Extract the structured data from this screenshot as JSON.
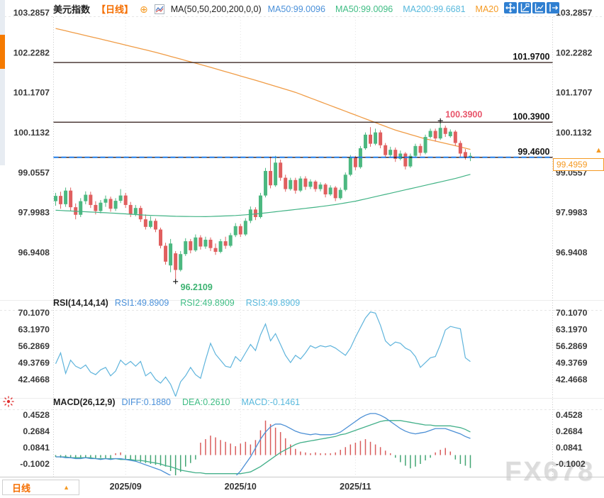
{
  "colors": {
    "up": "#4cb880",
    "down": "#e05f5f",
    "ma_line_orange": "#f09c46",
    "ma_line_green": "#41b385",
    "rsi_line": "#5fb4dc",
    "diff_line": "#4b8fd5",
    "dea_line": "#43b08a",
    "hist_up": "#d95c5c",
    "hist_down": "#43a573",
    "accent_orange": "#f59a23",
    "deep_orange": "#f56e00",
    "accent_blue": "#4a90d9",
    "accent_green": "#3fbd84",
    "accent_cyan": "#57b8dc",
    "price_line": "#2b1612",
    "dashed_blue": "#1f7ce8",
    "label_red": "#e8546a",
    "label_green": "#3cb371",
    "toolbar_blue": "#2f7fd1",
    "axis_text": "#3a3a3a",
    "watermark": "#dcdcdc"
  },
  "icons": {
    "add_circle": "⊕",
    "up_triangle": "▲"
  },
  "header": {
    "symbol": "美元指数",
    "period": "【日线】",
    "ma_settings": "MA(50,50,200,200,0,0)",
    "ma_labels": [
      {
        "text": "MA50:99.0096",
        "color": "#4a90d9"
      },
      {
        "text": "MA50:99.0096",
        "color": "#3fbd84"
      },
      {
        "text": "MA200:99.6681",
        "color": "#57b8dc"
      },
      {
        "text": "MA20",
        "color": "#f59a23"
      }
    ]
  },
  "toolbar": {
    "icons": [
      "pan-icon",
      "zoom-axis-icon",
      "scale-axis-icon",
      "exit-fullscreen-icon"
    ]
  },
  "rsi_header": {
    "title": "RSI(14,14,14)",
    "labels": [
      {
        "text": "RSI1:49.8909",
        "color": "#4a90d9"
      },
      {
        "text": "RSI2:49.8909",
        "color": "#3fbd84"
      },
      {
        "text": "RSI3:49.8909",
        "color": "#57b8dc"
      }
    ]
  },
  "macd_header": {
    "title": "MACD(26,12,9)",
    "labels": [
      {
        "text": "DIFF:0.1880",
        "color": "#4a90d9"
      },
      {
        "text": "DEA:0.2610",
        "color": "#3fbd84"
      },
      {
        "text": "MACD:-0.1461",
        "color": "#57b8dc"
      }
    ]
  },
  "footer": {
    "period_label": "日线",
    "x_labels": [
      {
        "text": "2025/09",
        "index": 14
      },
      {
        "text": "2025/10",
        "index": 37
      },
      {
        "text": "2025/11",
        "index": 60
      }
    ]
  },
  "price_box": {
    "value": "99.4959"
  },
  "watermark": "FX678",
  "chart_data": [
    {
      "type": "candlestick",
      "title": "美元指数 日线",
      "y_ticks": [
        "103.2857",
        "102.2282",
        "101.1707",
        "100.1132",
        "99.0557",
        "97.9983",
        "96.9408"
      ],
      "hlines": [
        {
          "value": 101.97,
          "label": "101.9700",
          "style": "solid"
        },
        {
          "value": 100.39,
          "label": "100.3900",
          "style": "solid"
        },
        {
          "value": 99.46,
          "label": "99.4600",
          "style": "dashed-blue"
        }
      ],
      "high_label": {
        "text": "100.3900",
        "value": 100.39,
        "index": 77
      },
      "low_label": {
        "text": "96.2109",
        "value": 96.2109,
        "index": 24
      },
      "last_price": "99.4959",
      "candles": [
        [
          98.3,
          98.52,
          98.18,
          98.44
        ],
        [
          98.44,
          98.55,
          98.1,
          98.22
        ],
        [
          98.22,
          98.66,
          98.15,
          98.58
        ],
        [
          98.58,
          98.66,
          98.05,
          98.14
        ],
        [
          98.14,
          98.24,
          97.82,
          97.94
        ],
        [
          97.94,
          98.38,
          97.88,
          98.3
        ],
        [
          98.3,
          98.56,
          98.22,
          98.47
        ],
        [
          98.47,
          98.55,
          98.12,
          98.2
        ],
        [
          98.2,
          98.3,
          97.95,
          98.04
        ],
        [
          98.04,
          98.33,
          97.98,
          98.26
        ],
        [
          98.26,
          98.45,
          98.15,
          98.36
        ],
        [
          98.36,
          98.42,
          98.02,
          98.1
        ],
        [
          98.1,
          98.38,
          98.04,
          98.31
        ],
        [
          98.31,
          98.62,
          98.25,
          98.45
        ],
        [
          98.45,
          98.52,
          98.12,
          98.2
        ],
        [
          98.2,
          98.28,
          97.88,
          97.96
        ],
        [
          97.96,
          98.2,
          97.9,
          98.12
        ],
        [
          98.12,
          98.18,
          97.75,
          97.82
        ],
        [
          97.82,
          97.95,
          97.55,
          97.62
        ],
        [
          97.62,
          97.9,
          97.58,
          97.78
        ],
        [
          97.78,
          97.84,
          97.48,
          97.55
        ],
        [
          97.55,
          97.6,
          97.05,
          97.12
        ],
        [
          97.12,
          97.2,
          96.62,
          96.7
        ],
        [
          96.6,
          97.3,
          96.42,
          97.18
        ],
        [
          96.92,
          96.98,
          96.21,
          96.48
        ],
        [
          96.48,
          96.98,
          96.44,
          96.9
        ],
        [
          96.9,
          97.32,
          96.85,
          97.24
        ],
        [
          97.24,
          97.3,
          96.92,
          97.0
        ],
        [
          97.0,
          97.42,
          96.96,
          97.34
        ],
        [
          97.34,
          97.4,
          97.02,
          97.1
        ],
        [
          97.1,
          97.36,
          97.04,
          97.28
        ],
        [
          97.28,
          97.34,
          96.98,
          97.06
        ],
        [
          97.06,
          97.18,
          96.88,
          96.96
        ],
        [
          96.96,
          97.3,
          96.92,
          97.24
        ],
        [
          97.24,
          97.36,
          97.04,
          97.12
        ],
        [
          97.12,
          97.46,
          97.08,
          97.4
        ],
        [
          97.4,
          97.72,
          97.35,
          97.64
        ],
        [
          97.64,
          97.7,
          97.35,
          97.42
        ],
        [
          97.42,
          97.85,
          97.38,
          97.78
        ],
        [
          97.78,
          98.16,
          97.72,
          98.08
        ],
        [
          98.08,
          98.14,
          97.8,
          97.88
        ],
        [
          97.88,
          98.52,
          97.84,
          98.45
        ],
        [
          98.45,
          99.18,
          98.4,
          99.1
        ],
        [
          99.1,
          99.48,
          98.64,
          98.72
        ],
        [
          98.72,
          99.5,
          98.68,
          99.32
        ],
        [
          99.32,
          99.4,
          98.84,
          98.92
        ],
        [
          98.92,
          99.0,
          98.55,
          98.62
        ],
        [
          98.62,
          98.92,
          98.58,
          98.86
        ],
        [
          98.86,
          98.92,
          98.5,
          98.58
        ],
        [
          98.58,
          98.96,
          98.54,
          98.9
        ],
        [
          98.9,
          98.96,
          98.6,
          98.68
        ],
        [
          98.68,
          98.88,
          98.62,
          98.82
        ],
        [
          98.82,
          98.86,
          98.55,
          98.62
        ],
        [
          98.62,
          98.8,
          98.56,
          98.74
        ],
        [
          98.74,
          98.78,
          98.4,
          98.48
        ],
        [
          98.48,
          98.72,
          98.44,
          98.66
        ],
        [
          98.66,
          98.7,
          98.3,
          98.38
        ],
        [
          98.38,
          98.66,
          98.34,
          98.6
        ],
        [
          98.6,
          99.06,
          98.56,
          99.0
        ],
        [
          99.0,
          99.52,
          98.96,
          99.45
        ],
        [
          99.45,
          99.5,
          99.12,
          99.2
        ],
        [
          99.2,
          99.76,
          99.16,
          99.7
        ],
        [
          99.7,
          100.12,
          99.66,
          100.06
        ],
        [
          100.06,
          100.26,
          99.74,
          99.82
        ],
        [
          99.82,
          100.22,
          99.78,
          100.12
        ],
        [
          100.12,
          100.18,
          99.7,
          99.78
        ],
        [
          99.78,
          99.84,
          99.44,
          99.52
        ],
        [
          99.52,
          99.74,
          99.48,
          99.66
        ],
        [
          99.66,
          99.72,
          99.34,
          99.42
        ],
        [
          99.42,
          99.64,
          99.38,
          99.56
        ],
        [
          99.56,
          99.6,
          99.14,
          99.22
        ],
        [
          99.22,
          99.56,
          99.18,
          99.5
        ],
        [
          99.5,
          99.82,
          99.46,
          99.76
        ],
        [
          99.76,
          99.82,
          99.5,
          99.58
        ],
        [
          99.58,
          100.06,
          99.54,
          100.0
        ],
        [
          100.0,
          100.22,
          99.96,
          100.16
        ],
        [
          100.16,
          100.22,
          99.88,
          99.96
        ],
        [
          99.96,
          100.39,
          99.92,
          100.24
        ],
        [
          100.24,
          100.3,
          100.0,
          100.08
        ],
        [
          100.02,
          100.2,
          99.98,
          100.14
        ],
        [
          100.14,
          100.18,
          99.76,
          99.84
        ],
        [
          99.84,
          99.9,
          99.48,
          99.56
        ],
        [
          99.6,
          99.68,
          99.4,
          99.47
        ],
        [
          99.47,
          99.58,
          99.36,
          99.5
        ]
      ],
      "ma200_keypoints": [
        [
          0,
          102.87
        ],
        [
          10,
          102.56
        ],
        [
          20,
          102.24
        ],
        [
          30,
          101.88
        ],
        [
          40,
          101.5
        ],
        [
          48,
          101.18
        ],
        [
          56,
          100.78
        ],
        [
          62,
          100.48
        ],
        [
          68,
          100.18
        ],
        [
          74,
          99.95
        ],
        [
          79,
          99.8
        ],
        [
          83,
          99.67
        ]
      ],
      "ma50_keypoints": [
        [
          0,
          98.06
        ],
        [
          6,
          98.02
        ],
        [
          12,
          97.98
        ],
        [
          18,
          97.93
        ],
        [
          24,
          97.9
        ],
        [
          30,
          97.89
        ],
        [
          36,
          97.92
        ],
        [
          40,
          97.96
        ],
        [
          44,
          98.02
        ],
        [
          48,
          98.08
        ],
        [
          52,
          98.14
        ],
        [
          56,
          98.21
        ],
        [
          60,
          98.3
        ],
        [
          64,
          98.42
        ],
        [
          68,
          98.54
        ],
        [
          72,
          98.66
        ],
        [
          76,
          98.78
        ],
        [
          80,
          98.9
        ],
        [
          83,
          99.01
        ]
      ]
    },
    {
      "type": "line",
      "title": "RSI(14,14,14)",
      "y_ticks": [
        "70.1070",
        "63.1970",
        "56.2869",
        "49.3769",
        "42.4668"
      ],
      "values": [
        49.0,
        53.5,
        45.0,
        50.5,
        48.0,
        47.0,
        48.5,
        45.5,
        44.5,
        46.5,
        47.5,
        44.0,
        46.0,
        50.5,
        48.5,
        50.0,
        48.0,
        50.0,
        44.0,
        45.5,
        42.5,
        41.0,
        43.5,
        40.5,
        35.5,
        41.5,
        44.0,
        47.5,
        44.5,
        43.0,
        50.5,
        57.5,
        53.0,
        50.5,
        48.0,
        47.5,
        52.0,
        50.0,
        53.5,
        57.0,
        54.5,
        61.0,
        65.5,
        58.5,
        61.5,
        57.0,
        52.5,
        49.5,
        52.5,
        51.0,
        53.5,
        56.5,
        55.5,
        56.5,
        56.0,
        56.5,
        55.5,
        54.0,
        52.5,
        55.5,
        60.0,
        64.0,
        68.0,
        70.5,
        70.0,
        65.0,
        58.5,
        56.5,
        58.0,
        57.5,
        55.5,
        54.5,
        52.0,
        47.5,
        49.5,
        51.5,
        52.0,
        57.0,
        63.0,
        64.5,
        64.0,
        63.5,
        51.5,
        49.9
      ]
    },
    {
      "type": "macd",
      "title": "MACD(26,12,9)",
      "y_ticks": [
        "0.4528",
        "0.2684",
        "0.0841",
        "-0.1002"
      ],
      "diff": [
        -0.02,
        -0.02,
        -0.03,
        -0.03,
        -0.04,
        -0.04,
        -0.03,
        -0.04,
        -0.04,
        -0.05,
        -0.04,
        -0.05,
        -0.04,
        -0.04,
        -0.05,
        -0.06,
        -0.07,
        -0.09,
        -0.11,
        -0.13,
        -0.15,
        -0.17,
        -0.2,
        -0.23,
        -0.26,
        -0.28,
        -0.29,
        -0.3,
        -0.3,
        -0.29,
        -0.27,
        -0.26,
        -0.27,
        -0.29,
        -0.3,
        -0.28,
        -0.24,
        -0.18,
        -0.1,
        -0.02,
        0.08,
        0.18,
        0.26,
        0.32,
        0.35,
        0.35,
        0.33,
        0.3,
        0.27,
        0.25,
        0.24,
        0.23,
        0.24,
        0.23,
        0.23,
        0.23,
        0.24,
        0.26,
        0.3,
        0.34,
        0.38,
        0.42,
        0.45,
        0.47,
        0.47,
        0.45,
        0.42,
        0.38,
        0.34,
        0.3,
        0.27,
        0.25,
        0.24,
        0.25,
        0.26,
        0.28,
        0.3,
        0.3,
        0.3,
        0.28,
        0.26,
        0.24,
        0.21,
        0.188
      ],
      "dea": [
        -0.02,
        -0.02,
        -0.02,
        -0.03,
        -0.03,
        -0.03,
        -0.03,
        -0.03,
        -0.04,
        -0.04,
        -0.04,
        -0.04,
        -0.04,
        -0.05,
        -0.05,
        -0.05,
        -0.06,
        -0.06,
        -0.07,
        -0.08,
        -0.09,
        -0.1,
        -0.12,
        -0.13,
        -0.15,
        -0.17,
        -0.18,
        -0.19,
        -0.2,
        -0.2,
        -0.21,
        -0.21,
        -0.21,
        -0.21,
        -0.21,
        -0.21,
        -0.21,
        -0.21,
        -0.2,
        -0.19,
        -0.16,
        -0.13,
        -0.09,
        -0.05,
        -0.01,
        0.03,
        0.06,
        0.09,
        0.12,
        0.14,
        0.15,
        0.16,
        0.17,
        0.18,
        0.19,
        0.2,
        0.21,
        0.23,
        0.24,
        0.26,
        0.28,
        0.3,
        0.32,
        0.34,
        0.36,
        0.38,
        0.39,
        0.39,
        0.39,
        0.39,
        0.38,
        0.37,
        0.36,
        0.35,
        0.34,
        0.34,
        0.33,
        0.33,
        0.33,
        0.33,
        0.32,
        0.31,
        0.29,
        0.261
      ],
      "hist": [
        -0.02,
        -0.03,
        -0.02,
        -0.03,
        -0.04,
        -0.03,
        -0.03,
        -0.03,
        -0.04,
        -0.03,
        -0.04,
        -0.04,
        0.02,
        0.03,
        -0.05,
        -0.06,
        -0.07,
        -0.08,
        -0.09,
        -0.1,
        -0.11,
        -0.12,
        -0.13,
        -0.18,
        -0.23,
        -0.19,
        -0.13,
        -0.09,
        -0.05,
        0.14,
        0.18,
        0.22,
        0.2,
        0.17,
        0.15,
        0.13,
        0.1,
        0.13,
        0.15,
        0.12,
        0.17,
        0.28,
        0.39,
        0.35,
        0.31,
        0.26,
        0.19,
        0.12,
        0.07,
        0.04,
        0.03,
        0.02,
        0.03,
        0.02,
        0.02,
        0.02,
        0.03,
        0.06,
        0.09,
        0.12,
        0.14,
        0.16,
        0.18,
        0.15,
        0.12,
        0.09,
        0.05,
        0.02,
        -0.03,
        -0.08,
        -0.12,
        -0.15,
        -0.13,
        -0.1,
        -0.06,
        -0.03,
        0.03,
        0.06,
        0.08,
        0.04,
        -0.05,
        -0.1,
        -0.12,
        -0.1461
      ]
    }
  ]
}
